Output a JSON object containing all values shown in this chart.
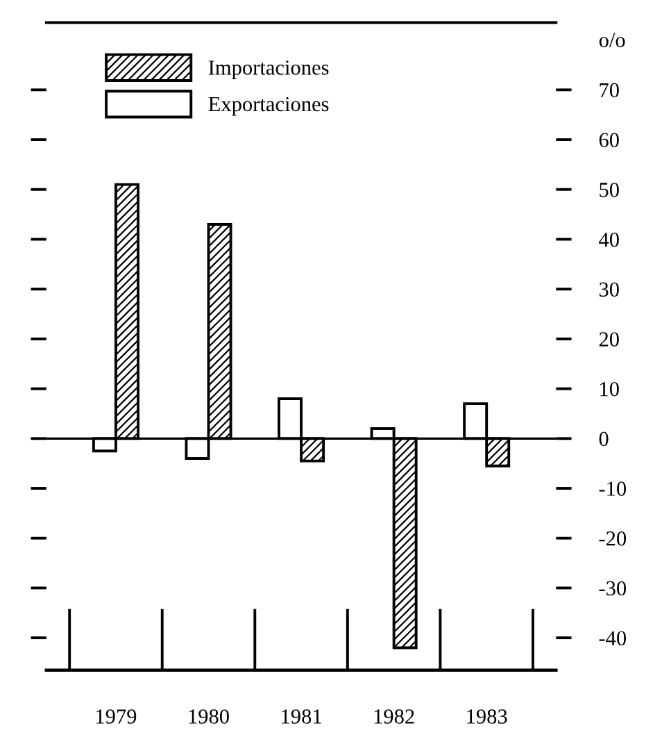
{
  "chart_data": {
    "type": "bar",
    "ylabel": "o/o",
    "categories": [
      "1979",
      "1980",
      "1981",
      "1982",
      "1983"
    ],
    "series": [
      {
        "name": "Importaciones",
        "color": "#000000",
        "values": [
          51,
          43,
          -4.5,
          -42,
          -5.5
        ]
      },
      {
        "name": "Exportaciones",
        "color": "#ffffff",
        "values": [
          -2.5,
          -4,
          8,
          2,
          7
        ]
      }
    ],
    "ylim": [
      -46.5,
      83.5
    ],
    "yticks": [
      -40,
      -30,
      -20,
      -10,
      0,
      10,
      20,
      30,
      40,
      50,
      60,
      70
    ],
    "legend": "top left"
  }
}
